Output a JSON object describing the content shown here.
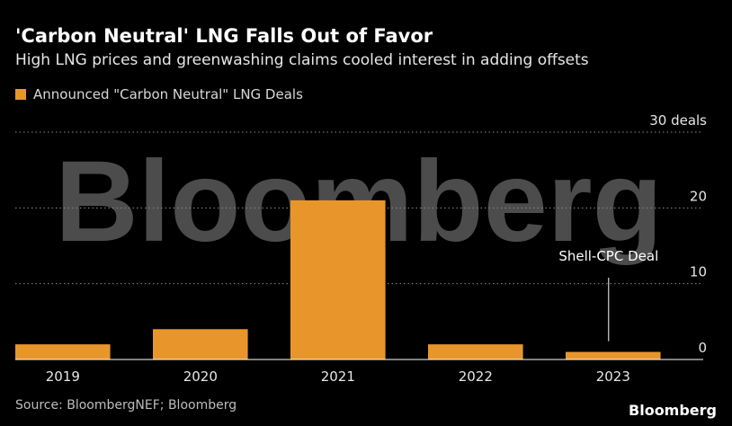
{
  "header": {
    "title": "'Carbon Neutral' LNG Falls Out of Favor",
    "subtitle": "High LNG prices and greenwashing claims cooled interest in adding offsets"
  },
  "legend": {
    "label": "Announced \"Carbon Neutral\" LNG Deals"
  },
  "footer": {
    "source": "Source: BloombergNEF; Bloomberg",
    "brand": "Bloomberg"
  },
  "watermark_logo": "Bloomberg",
  "colors": {
    "bar": "#e8962c",
    "background": "#000000"
  },
  "chart_data": {
    "type": "bar",
    "categories": [
      "2019",
      "2020",
      "2021",
      "2022",
      "2023"
    ],
    "values": [
      2,
      4,
      21,
      2,
      1
    ],
    "ylim": [
      0,
      30
    ],
    "yticks": [
      0,
      10,
      20,
      30
    ],
    "ytick_labels": [
      "0",
      "10",
      "20",
      "30 deals"
    ],
    "ytick_position": "right",
    "grid": true,
    "legend_position": "top-left",
    "annotations": [
      {
        "text": "Shell-CPC Deal",
        "category": "2023"
      }
    ]
  }
}
